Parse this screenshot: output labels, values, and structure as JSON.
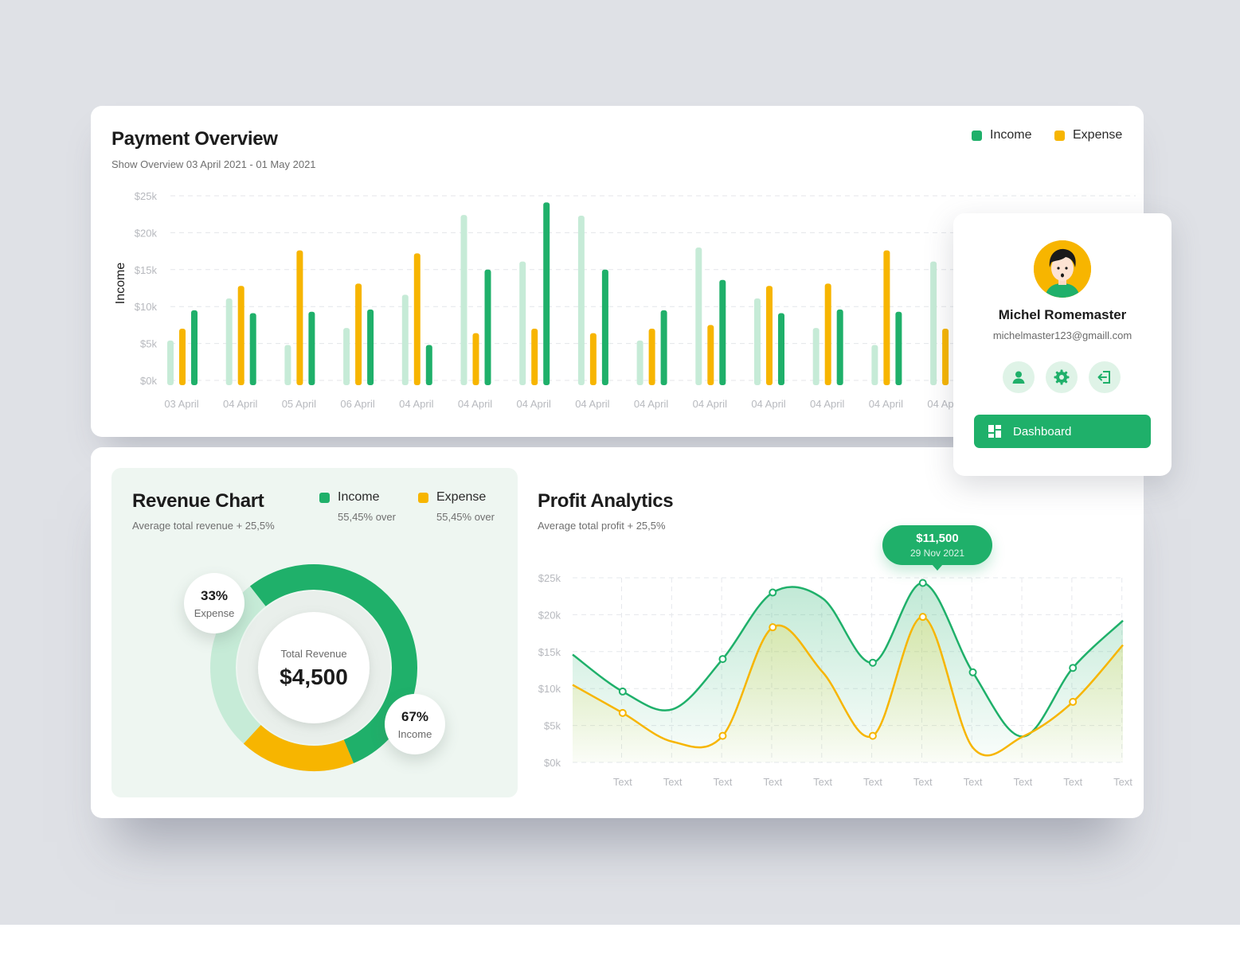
{
  "colors": {
    "income": "#1fb06a",
    "income_light": "#c6ebd7",
    "expense": "#f7b500",
    "background": "#dfe1e6"
  },
  "payment_overview": {
    "title": "Payment Overview",
    "subtitle": "Show Overview 03 April 2021 - 01 May 2021",
    "legend": {
      "income": "Income",
      "expense": "Expense"
    }
  },
  "revenue_chart": {
    "title": "Revenue Chart",
    "subtitle": "Average total revenue + 25,5%",
    "legend": {
      "income": {
        "label": "Income",
        "note": "55,45% over"
      },
      "expense": {
        "label": "Expense",
        "note": "55,45% over"
      }
    },
    "center_label": "Total Revenue",
    "center_value": "$4,500",
    "expense_bubble": {
      "pct": "33%",
      "label": "Expense"
    },
    "income_bubble": {
      "pct": "67%",
      "label": "Income"
    }
  },
  "profit_analytics": {
    "title": "Profit Analytics",
    "subtitle": "Average total profit + 25,5%",
    "tooltip": {
      "value": "$11,500",
      "date": "29 Nov 2021"
    }
  },
  "profile": {
    "name": "Michel Romemaster",
    "email": "michelmaster123@gmaill.com",
    "dashboard_label": "Dashboard"
  },
  "chart_data": [
    {
      "type": "bar",
      "ylabel": "Income",
      "ylim": [
        0,
        25
      ],
      "yticks": [
        "$0k",
        "$5k",
        "$10k",
        "$15k",
        "$20k",
        "$25k"
      ],
      "categories": [
        "03 April",
        "04 April",
        "05 April",
        "06 April",
        "04 April",
        "04 April",
        "04 April",
        "04 April",
        "04 April",
        "04 April",
        "04 April",
        "04 April",
        "04 April",
        "04 April"
      ],
      "series": [
        {
          "values": [
            5.4,
            11.1,
            4.8,
            7.1,
            11.6,
            22.4,
            16.1,
            22.3,
            5.4,
            18.0,
            11.1,
            7.1,
            4.8,
            16.1
          ]
        },
        {
          "name": "Expense",
          "values": [
            7.0,
            12.8,
            17.6,
            13.1,
            17.2,
            6.4,
            7.0,
            6.4,
            7.0,
            7.5,
            12.8,
            13.1,
            17.6,
            7.0
          ]
        },
        {
          "name": "Income",
          "values": [
            9.5,
            9.1,
            9.3,
            9.6,
            4.8,
            15.0,
            24.1,
            15.0,
            9.5,
            13.6,
            9.1,
            9.6,
            9.3,
            9.1
          ]
        }
      ],
      "grid": true
    },
    {
      "type": "pie",
      "slices": [
        {
          "label": "Income",
          "value": 67
        },
        {
          "label": "Expense",
          "value": 33
        }
      ],
      "center_text": "Total Revenue",
      "center_value": "$4,500"
    },
    {
      "type": "area",
      "ylim": [
        0,
        25
      ],
      "yticks": [
        "$0k",
        "$5k",
        "$10k",
        "$15k",
        "$20k",
        "$25k"
      ],
      "categories": [
        "Text",
        "Text",
        "Text",
        "Text",
        "Text",
        "Text",
        "Text",
        "Text",
        "Text",
        "Text",
        "Text"
      ],
      "series": [
        {
          "name": "Income",
          "points": [
            [
              0,
              14.6
            ],
            [
              1,
              9.6
            ],
            [
              2,
              7.2
            ],
            [
              3,
              14.0
            ],
            [
              4,
              23.0
            ],
            [
              5,
              22.2
            ],
            [
              6,
              13.5
            ],
            [
              7,
              24.3
            ],
            [
              8,
              12.2
            ],
            [
              9,
              3.5
            ],
            [
              10,
              12.8
            ],
            [
              11,
              19.2
            ]
          ]
        },
        {
          "name": "Expense",
          "points": [
            [
              0,
              10.5
            ],
            [
              1,
              6.7
            ],
            [
              2,
              2.8
            ],
            [
              3,
              3.6
            ],
            [
              4,
              18.3
            ],
            [
              5,
              12.2
            ],
            [
              6,
              3.6
            ],
            [
              7,
              19.7
            ],
            [
              8,
              2.0
            ],
            [
              9,
              3.5
            ],
            [
              10,
              8.2
            ],
            [
              11,
              15.9
            ]
          ]
        }
      ],
      "highlight": {
        "value": "$11,500",
        "date": "29 Nov 2021"
      },
      "grid": true
    }
  ]
}
